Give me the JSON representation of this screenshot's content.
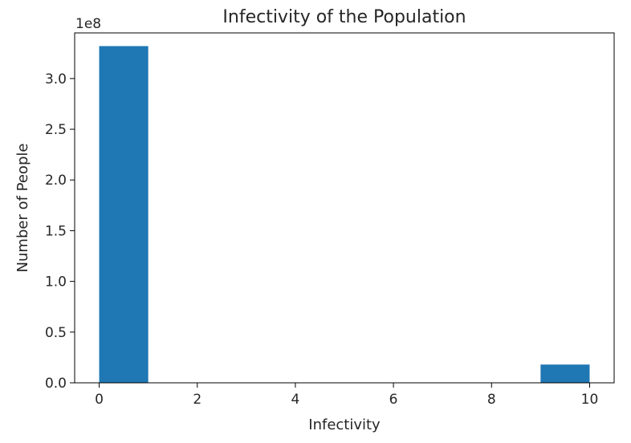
{
  "chart_data": {
    "type": "bar",
    "title": "Infectivity of the Population",
    "xlabel": "Infectivity",
    "ylabel": "Number of People",
    "y_offset_label": "1e8",
    "y_scale_factor": 100000000,
    "xlim": [
      -0.5,
      10.5
    ],
    "ylim": [
      0,
      345000000
    ],
    "xticks": [
      0,
      2,
      4,
      6,
      8,
      10
    ],
    "xtick_labels": [
      "0",
      "2",
      "4",
      "6",
      "8",
      "10"
    ],
    "yticks": [
      0,
      0.5,
      1.0,
      1.5,
      2.0,
      2.5,
      3.0
    ],
    "ytick_labels": [
      "0.0",
      "0.5",
      "1.0",
      "1.5",
      "2.0",
      "2.5",
      "3.0"
    ],
    "bar_color": "#1f77b4",
    "bins": [
      {
        "start": 0,
        "end": 1,
        "value": 332000000
      },
      {
        "start": 1,
        "end": 2,
        "value": 0
      },
      {
        "start": 2,
        "end": 3,
        "value": 0
      },
      {
        "start": 3,
        "end": 4,
        "value": 0
      },
      {
        "start": 4,
        "end": 5,
        "value": 0
      },
      {
        "start": 5,
        "end": 6,
        "value": 0
      },
      {
        "start": 6,
        "end": 7,
        "value": 0
      },
      {
        "start": 7,
        "end": 8,
        "value": 0
      },
      {
        "start": 8,
        "end": 9,
        "value": 0
      },
      {
        "start": 9,
        "end": 10,
        "value": 18000000
      }
    ],
    "grid": false,
    "legend": "none"
  }
}
